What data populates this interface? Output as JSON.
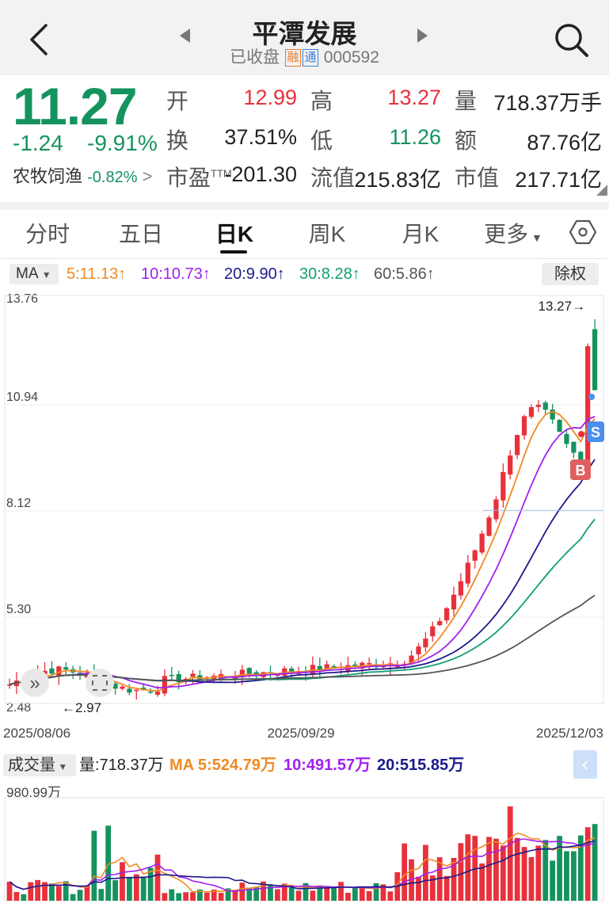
{
  "header": {
    "title": "平潭发展",
    "status": "已收盘",
    "tag_margin": "融",
    "tag_connect": "通",
    "code": "000592"
  },
  "quote": {
    "price": "11.27",
    "change": "-1.24",
    "change_pct": "-9.91%",
    "stats": [
      {
        "label": "开",
        "value": "12.99",
        "color": "#e8313b"
      },
      {
        "label": "高",
        "value": "13.27",
        "color": "#e8313b"
      },
      {
        "label": "量",
        "value": "718.37万手",
        "color": "#222222"
      },
      {
        "label": "换",
        "value": "37.51%",
        "color": "#222222"
      },
      {
        "label": "低",
        "value": "11.26",
        "color": "#15935f"
      },
      {
        "label": "额",
        "value": "87.76亿",
        "color": "#222222"
      },
      {
        "label": "市盈TTM",
        "value": "-201.30",
        "color": "#222222"
      },
      {
        "label": "流值",
        "value": "215.83亿",
        "color": "#222222"
      },
      {
        "label": "市值",
        "value": "217.71亿",
        "color": "#222222"
      }
    ],
    "sector_name": "农牧饲渔",
    "sector_pct": "-0.82%"
  },
  "tabs": [
    "分时",
    "五日",
    "日K",
    "周K",
    "月K",
    "更多"
  ],
  "active_tab": "日K",
  "ma_bar": {
    "selector": "MA",
    "items": [
      {
        "text": "5:11.13↑",
        "color": "#f08a24"
      },
      {
        "text": "10:10.73↑",
        "color": "#a020f0"
      },
      {
        "text": "20:9.90↑",
        "color": "#1a1a8c"
      },
      {
        "text": "30:8.28↑",
        "color": "#10a070"
      },
      {
        "text": "60:5.86↑",
        "color": "#555555"
      }
    ],
    "adjust_button": "除权"
  },
  "kline": {
    "y_ticks": [
      "13.76",
      "10.94",
      "8.12",
      "5.30",
      "2.48"
    ],
    "x_ticks": [
      "2025/08/06",
      "2025/09/29",
      "2025/12/03"
    ],
    "high_marker": "13.27",
    "low_marker": "2.97",
    "buy_marker": "B",
    "sell_marker": "S",
    "expand_icon": "»",
    "colors": {
      "up": "#e8313b",
      "down": "#15935f"
    }
  },
  "volume": {
    "selector": "成交量",
    "vol_label": "量:718.37万",
    "ma_items": [
      {
        "text": "MA 5:524.79万",
        "color": "#f08a24"
      },
      {
        "text": "10:491.57万",
        "color": "#a020f0"
      },
      {
        "text": "20:515.85万",
        "color": "#1a1a8c"
      }
    ],
    "max_label": "980.99万"
  }
}
